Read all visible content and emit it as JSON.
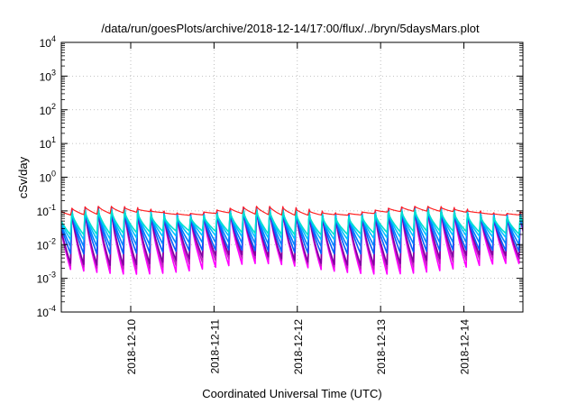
{
  "chart_data": {
    "type": "line",
    "title": "/data/run/goesPlots/archive/2018-12-14/17:00/flux/../bryn/5daysMars.plot",
    "xlabel": "Coordinated Universal Time (UTC)",
    "ylabel": "cSv/day",
    "yscale": "log",
    "ylim": [
      0.0001,
      10000
    ],
    "y_ticks": [
      {
        "base": "10",
        "exp": "-4"
      },
      {
        "base": "10",
        "exp": "-3"
      },
      {
        "base": "10",
        "exp": "-2"
      },
      {
        "base": "10",
        "exp": "-1"
      },
      {
        "base": "10",
        "exp": "0"
      },
      {
        "base": "10",
        "exp": "1"
      },
      {
        "base": "10",
        "exp": "2"
      },
      {
        "base": "10",
        "exp": "3"
      },
      {
        "base": "10",
        "exp": "4"
      }
    ],
    "xlim": [
      "2018-12-09T04:00",
      "2018-12-14T17:00"
    ],
    "x_tick_labels": [
      "2018-12-10",
      "2018-12-11",
      "2018-12-12",
      "2018-12-13",
      "2018-12-14"
    ],
    "grid": true,
    "sawtooth_period_hours": 3.8,
    "series": [
      {
        "color": "#ff00ff",
        "peak": 0.105,
        "trough": 0.0018
      },
      {
        "color": "#c020c0",
        "peak": 0.1,
        "trough": 0.0026
      },
      {
        "color": "#8000a0",
        "peak": 0.095,
        "trough": 0.0033
      },
      {
        "color": "#0060ff",
        "peak": 0.1,
        "trough": 0.006
      },
      {
        "color": "#0080ff",
        "peak": 0.095,
        "trough": 0.01
      },
      {
        "color": "#00c0ff",
        "peak": 0.09,
        "trough": 0.016
      },
      {
        "color": "#00e0d0",
        "peak": 0.085,
        "trough": 0.022
      },
      {
        "color": "#ff2020",
        "peak": 0.11,
        "trough": 0.085
      }
    ]
  }
}
